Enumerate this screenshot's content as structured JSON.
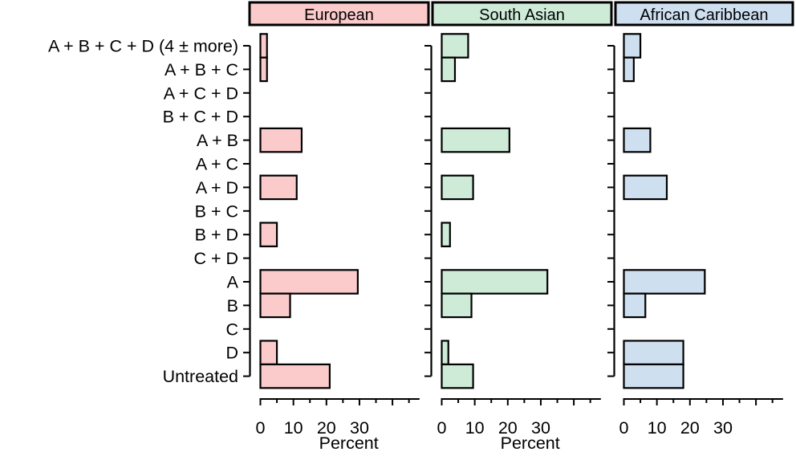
{
  "chart_data": {
    "type": "bar",
    "orientation": "horizontal",
    "title": "",
    "xlabel": "Percent",
    "categories": [
      "A + B + C + D (4 ± more)",
      "A + B + C",
      "A + C + D",
      "B + C + D",
      "A + B",
      "A + C",
      "A + D",
      "B + C",
      "B + D",
      "C + D",
      "A",
      "B",
      "C",
      "D",
      "Untreated"
    ],
    "series": [
      {
        "name": "European",
        "color": "#FBCACA",
        "values": [
          2,
          2,
          0,
          0,
          12.5,
          0,
          11,
          0,
          5,
          0,
          29.5,
          9,
          0,
          5,
          21
        ]
      },
      {
        "name": "South Asian",
        "color": "#CDEBD7",
        "values": [
          8,
          4,
          0,
          0,
          20.5,
          0,
          9.5,
          0,
          2.5,
          0,
          32,
          9,
          0,
          2,
          9.5
        ]
      },
      {
        "name": "African Caribbean",
        "color": "#CEDFF0",
        "values": [
          5,
          3,
          0,
          0,
          8,
          0,
          13,
          0,
          0,
          0,
          24.5,
          6.5,
          0,
          18,
          18
        ]
      }
    ],
    "x_axis": {
      "min": 0,
      "max": 48,
      "tick_step": 5,
      "labeled_ticks": [
        0,
        10,
        20,
        30
      ]
    },
    "xlabel_shown_under_panels": [
      true,
      true,
      false
    ],
    "grid": false,
    "legend_position": "panel-headers-top",
    "bar_border_color": "#000000",
    "text_color": "#000000",
    "background_color": "#FFFFFF"
  }
}
